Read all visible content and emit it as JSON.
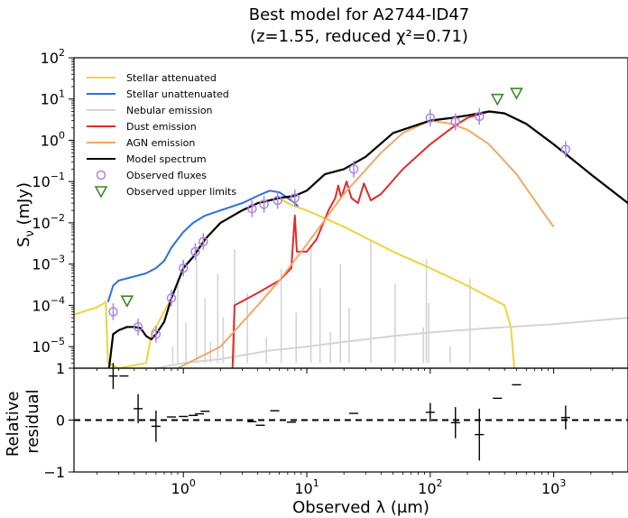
{
  "chart_data": [
    {
      "type": "line",
      "title": "Best model for A2744-ID47",
      "subtitle": "(z=1.55, reduced χ²=0.71)",
      "xlabel": "",
      "ylabel": "S_ν (mJy)",
      "xscale": "log",
      "yscale": "log",
      "xlim": [
        0.13,
        4000
      ],
      "ylim": [
        3e-06,
        100
      ],
      "yticks": [
        {
          "v": 100,
          "m": "10",
          "e": "2"
        },
        {
          "v": 10,
          "m": "10",
          "e": "1"
        },
        {
          "v": 1,
          "m": "10",
          "e": "0"
        },
        {
          "v": 0.1,
          "m": "10",
          "e": "−1"
        },
        {
          "v": 0.01,
          "m": "10",
          "e": "−2"
        },
        {
          "v": 0.001,
          "m": "10",
          "e": "−3"
        },
        {
          "v": 0.0001,
          "m": "10",
          "e": "−4"
        },
        {
          "v": 1e-05,
          "m": "10",
          "e": "−5"
        }
      ],
      "legend_position": "upper-left",
      "series": [
        {
          "name": "Stellar attenuated",
          "color": "#f0d23c",
          "points": [
            [
              0.13,
              6e-05
            ],
            [
              0.2,
              9e-05
            ],
            [
              0.235,
              0.00012
            ],
            [
              0.245,
              4e-06
            ],
            [
              0.3,
              3e-06
            ],
            [
              0.5,
              4e-06
            ],
            [
              0.56,
              2.5e-05
            ],
            [
              0.6,
              3e-05
            ],
            [
              0.8,
              0.00015
            ],
            [
              1.0,
              0.0008
            ],
            [
              1.3,
              0.002
            ],
            [
              1.6,
              0.005
            ],
            [
              2,
              0.01
            ],
            [
              3,
              0.02
            ],
            [
              4,
              0.03
            ],
            [
              5,
              0.035
            ],
            [
              6,
              0.04
            ],
            [
              7,
              0.03
            ],
            [
              8,
              0.025
            ],
            [
              10,
              0.02
            ],
            [
              20,
              0.008
            ],
            [
              50,
              0.002
            ],
            [
              100,
              0.0008
            ],
            [
              200,
              0.0003
            ],
            [
              400,
              0.0001
            ],
            [
              450,
              3e-05
            ],
            [
              480,
              3e-06
            ]
          ]
        },
        {
          "name": "Stellar unattenuated",
          "color": "#2e6ee0",
          "points": [
            [
              0.245,
              0.00012
            ],
            [
              0.27,
              0.0003
            ],
            [
              0.3,
              0.0004
            ],
            [
              0.4,
              0.0005
            ],
            [
              0.5,
              0.0006
            ],
            [
              0.6,
              0.0008
            ],
            [
              0.7,
              0.0012
            ],
            [
              0.8,
              0.0025
            ],
            [
              0.9,
              0.004
            ],
            [
              1.0,
              0.006
            ],
            [
              1.2,
              0.01
            ],
            [
              1.5,
              0.015
            ],
            [
              2,
              0.02
            ],
            [
              3,
              0.03
            ],
            [
              4,
              0.045
            ],
            [
              5,
              0.06
            ],
            [
              6,
              0.055
            ],
            [
              7,
              0.04
            ],
            [
              8,
              0.03
            ],
            [
              8.5,
              0.025
            ]
          ]
        },
        {
          "name": "Nebular emission",
          "color": "#d4d4d4",
          "points": [
            [
              0.6,
              3e-06
            ],
            [
              1,
              4e-06
            ],
            [
              2,
              5e-06
            ],
            [
              5,
              8e-06
            ],
            [
              10,
              1e-05
            ],
            [
              20,
              1.3e-05
            ],
            [
              50,
              1.8e-05
            ],
            [
              100,
              2.2e-05
            ],
            [
              300,
              2.8e-05
            ],
            [
              1000,
              3.5e-05
            ],
            [
              4000,
              5e-05
            ]
          ]
        },
        {
          "name": "Dust emission",
          "color": "#e02b2b",
          "points": [
            [
              2.5,
              3e-06
            ],
            [
              2.6,
              0.0001
            ],
            [
              4,
              0.0002
            ],
            [
              6,
              0.0004
            ],
            [
              7.5,
              0.0008
            ],
            [
              7.8,
              0.005
            ],
            [
              8,
              0.015
            ],
            [
              8.3,
              0.002
            ],
            [
              10,
              0.002
            ],
            [
              12,
              0.004
            ],
            [
              15,
              0.02
            ],
            [
              17,
              0.04
            ],
            [
              18,
              0.08
            ],
            [
              19,
              0.04
            ],
            [
              21,
              0.1
            ],
            [
              23,
              0.04
            ],
            [
              26,
              0.03
            ],
            [
              29,
              0.09
            ],
            [
              33,
              0.035
            ],
            [
              40,
              0.05
            ],
            [
              60,
              0.2
            ],
            [
              100,
              0.8
            ],
            [
              150,
              2
            ],
            [
              200,
              3.5
            ],
            [
              300,
              5
            ],
            [
              400,
              4.5
            ],
            [
              600,
              2.5
            ],
            [
              1000,
              0.8
            ],
            [
              2000,
              0.15
            ],
            [
              4000,
              0.03
            ]
          ]
        },
        {
          "name": "AGN emission",
          "color": "#f0a866",
          "points": [
            [
              0.9,
              3e-06
            ],
            [
              2,
              1e-05
            ],
            [
              4,
              0.0001
            ],
            [
              6,
              0.0004
            ],
            [
              10,
              0.003
            ],
            [
              20,
              0.05
            ],
            [
              40,
              0.5
            ],
            [
              60,
              1.5
            ],
            [
              100,
              3
            ],
            [
              150,
              2.5
            ],
            [
              200,
              1.8
            ],
            [
              300,
              0.8
            ],
            [
              500,
              0.15
            ],
            [
              800,
              0.02
            ],
            [
              1000,
              0.008
            ]
          ]
        },
        {
          "name": "Model spectrum",
          "color": "#000000",
          "points": [
            [
              0.25,
              3e-06
            ],
            [
              0.27,
              2e-05
            ],
            [
              0.3,
              2.5e-05
            ],
            [
              0.35,
              3e-05
            ],
            [
              0.4,
              3e-05
            ],
            [
              0.45,
              2.8e-05
            ],
            [
              0.5,
              1.8e-05
            ],
            [
              0.55,
              1.5e-05
            ],
            [
              0.6,
              2e-05
            ],
            [
              0.7,
              4e-05
            ],
            [
              0.8,
              0.00015
            ],
            [
              1.0,
              0.0008
            ],
            [
              1.2,
              0.0015
            ],
            [
              1.5,
              0.004
            ],
            [
              2,
              0.01
            ],
            [
              3,
              0.02
            ],
            [
              4,
              0.03
            ],
            [
              5,
              0.035
            ],
            [
              6,
              0.04
            ],
            [
              8,
              0.045
            ],
            [
              10,
              0.06
            ],
            [
              14,
              0.15
            ],
            [
              20,
              0.2
            ],
            [
              30,
              0.4
            ],
            [
              50,
              1.5
            ],
            [
              100,
              3
            ],
            [
              150,
              3.5
            ],
            [
              200,
              4
            ],
            [
              300,
              5
            ],
            [
              400,
              4.5
            ],
            [
              600,
              2.5
            ],
            [
              1000,
              0.8
            ],
            [
              2000,
              0.15
            ],
            [
              4000,
              0.03
            ]
          ]
        }
      ],
      "observed_fluxes": {
        "name": "Observed fluxes",
        "color": "#a888e0",
        "points": [
          [
            0.27,
            7e-05
          ],
          [
            0.43,
            3e-05
          ],
          [
            0.6,
            2e-05
          ],
          [
            0.8,
            0.00015
          ],
          [
            1.0,
            0.0008
          ],
          [
            1.25,
            0.002
          ],
          [
            1.45,
            0.0035
          ],
          [
            3.6,
            0.022
          ],
          [
            4.5,
            0.028
          ],
          [
            5.8,
            0.035
          ],
          [
            8.0,
            0.04
          ],
          [
            24,
            0.2
          ],
          [
            100,
            3.5
          ],
          [
            160,
            2.8
          ],
          [
            250,
            3.8
          ],
          [
            1250,
            0.6
          ]
        ]
      },
      "upper_limits": {
        "name": "Observed upper limits",
        "color": "#3a8a2a",
        "points": [
          [
            0.35,
            0.00013
          ],
          [
            350,
            10
          ],
          [
            500,
            14
          ]
        ]
      }
    },
    {
      "type": "scatter",
      "xlabel": "Observed λ (μm)",
      "ylabel": "Relative residual",
      "ylim": [
        -1,
        1
      ],
      "yticks": [
        "1",
        "0",
        "−1"
      ],
      "xticks": [
        {
          "v": 1,
          "m": "10",
          "e": "0"
        },
        {
          "v": 10,
          "m": "10",
          "e": "1"
        },
        {
          "v": 100,
          "m": "10",
          "e": "2"
        },
        {
          "v": 1000,
          "m": "10",
          "e": "3"
        }
      ],
      "points": [
        [
          0.27,
          0.85
        ],
        [
          0.33,
          0.85
        ],
        [
          0.43,
          0.22
        ],
        [
          0.6,
          -0.12
        ],
        [
          0.8,
          0.06
        ],
        [
          1.0,
          0.07
        ],
        [
          1.2,
          0.09
        ],
        [
          1.35,
          0.12
        ],
        [
          1.5,
          0.17
        ],
        [
          3.6,
          -0.03
        ],
        [
          4.2,
          -0.1
        ],
        [
          5.5,
          0.18
        ],
        [
          7.5,
          -0.04
        ],
        [
          24,
          0.13
        ],
        [
          100,
          0.15
        ],
        [
          160,
          -0.05
        ],
        [
          250,
          -0.28
        ],
        [
          350,
          0.42
        ],
        [
          500,
          0.68
        ],
        [
          1250,
          0.05
        ]
      ],
      "errors": [
        0.25,
        0,
        0.28,
        0.3,
        0,
        0,
        0,
        0,
        0,
        0,
        0,
        0,
        0,
        0,
        0.18,
        0.3,
        0.5,
        0,
        0,
        0.23
      ]
    }
  ]
}
